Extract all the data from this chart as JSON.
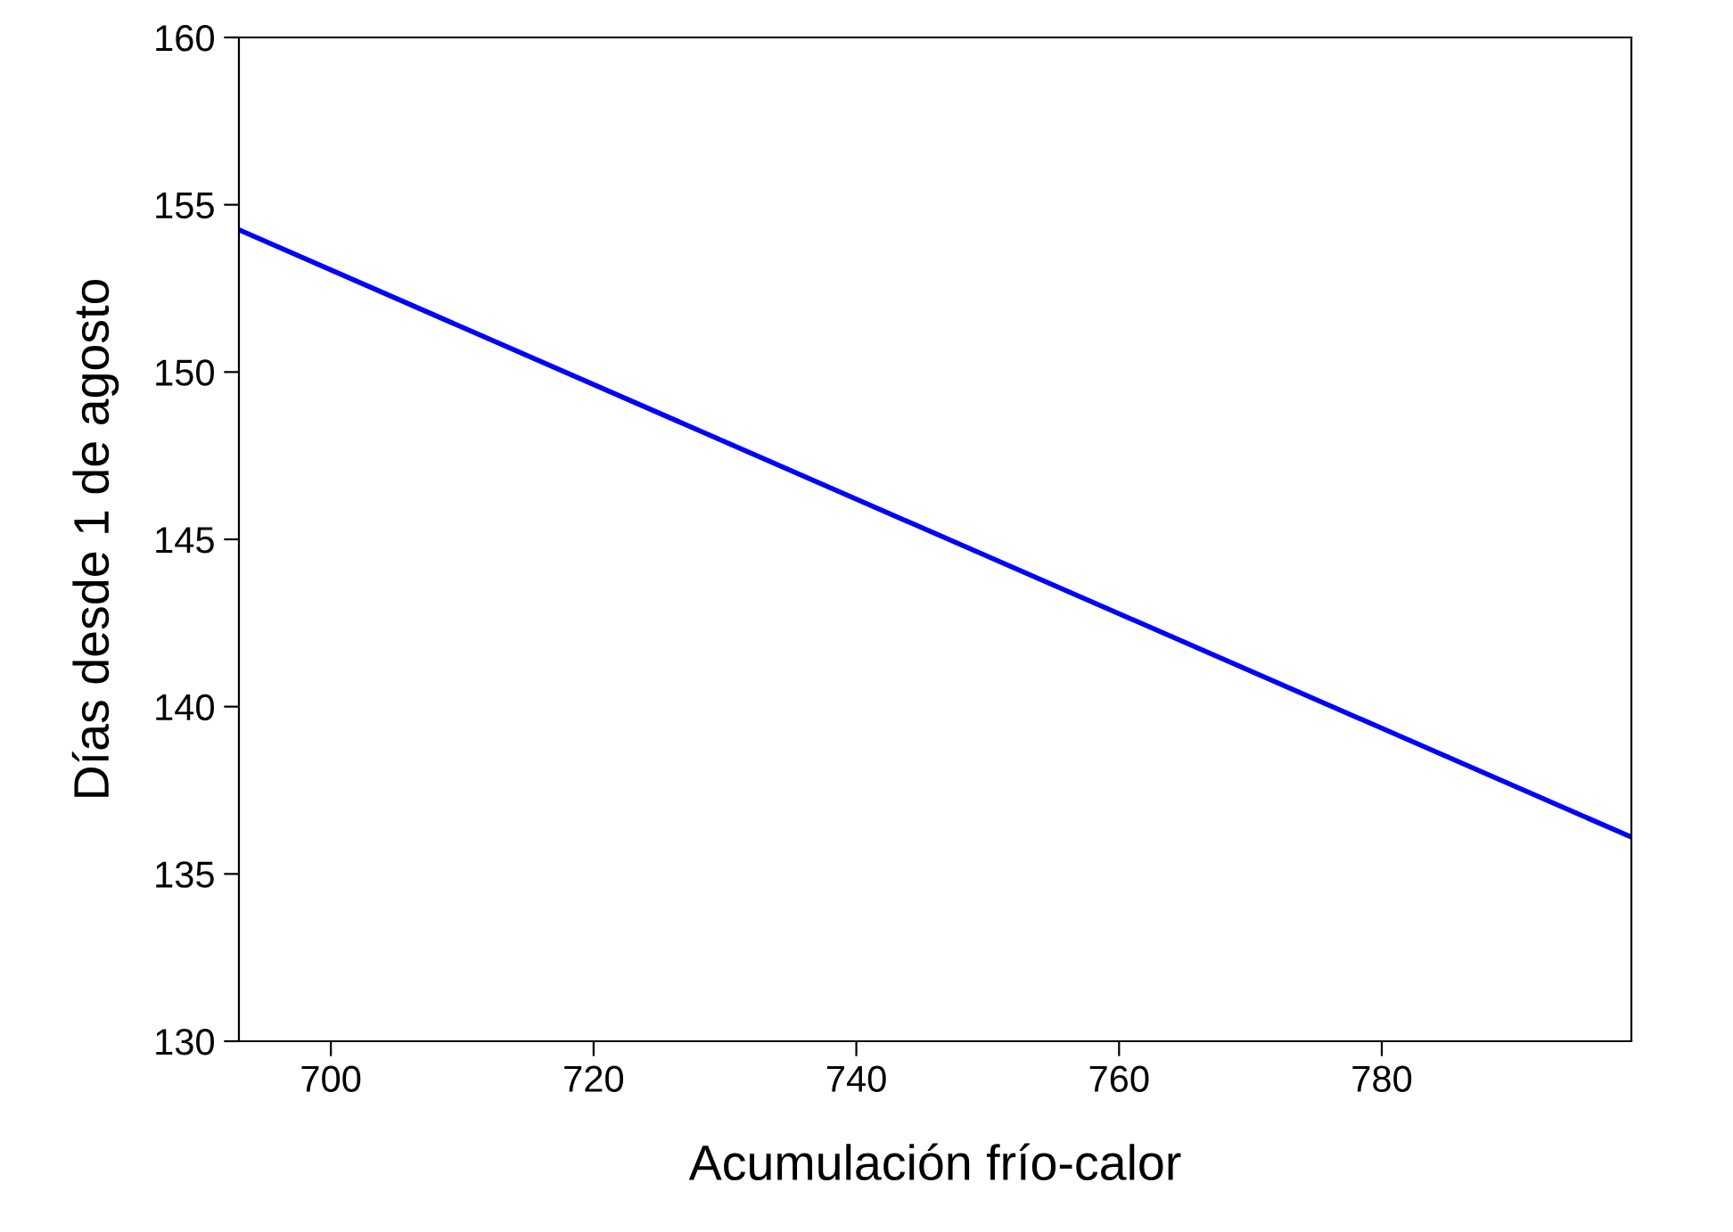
{
  "chart_data": {
    "type": "line",
    "xlabel": "Acumulación frío-calor",
    "ylabel": "Días desde 1 de agosto",
    "x": [
      693,
      799
    ],
    "series": [
      {
        "color": "#0000ff",
        "values": [
          154.25,
          136.1
        ]
      }
    ],
    "xlim": [
      693,
      799
    ],
    "xticks": [
      700,
      720,
      740,
      760,
      780
    ],
    "ylim": [
      130,
      160
    ],
    "yticks": [
      130,
      135,
      140,
      145,
      150,
      155,
      160
    ],
    "grid": false,
    "marker": "none",
    "line_style": "solid"
  }
}
